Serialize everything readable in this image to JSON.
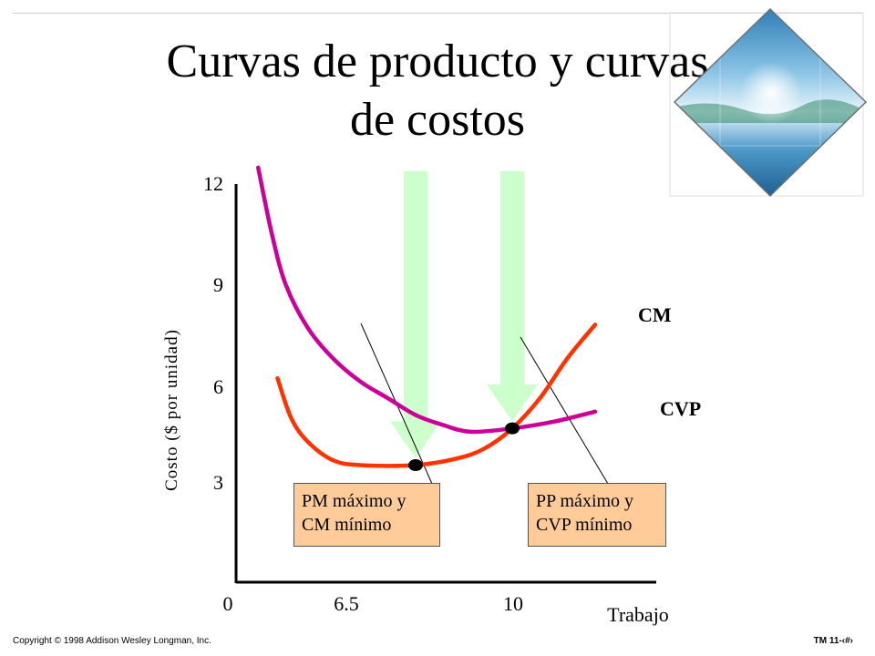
{
  "slide": {
    "title_line1": "Curvas de producto y curvas",
    "title_line2": "de costos",
    "copyright": "Copyright © 1998 Addison Wesley Longman, Inc.",
    "slide_number": "TM 11-‹#›"
  },
  "colors": {
    "cm_curve": "#ff3300",
    "cvp_curve": "#cc0099",
    "arrow": "#ccffcc",
    "callout_fill": "#ffcc99"
  },
  "chart_data": {
    "type": "line",
    "xlabel": "Trabajo",
    "ylabel": "Costo ($ por unidad)",
    "x_ticks": [
      "0",
      "6.5",
      "10"
    ],
    "y_ticks": [
      "12",
      "9",
      "6",
      "3"
    ],
    "xlim": [
      0,
      13.5
    ],
    "ylim": [
      0,
      12
    ],
    "series": [
      {
        "name": "CM",
        "x": [
          1.5,
          2.0,
          2.6,
          3.5,
          4.5,
          6.5,
          8.0,
          9.0,
          10.0,
          11.0,
          12.0,
          13.0
        ],
        "y": [
          6.1,
          4.9,
          4.2,
          3.65,
          3.5,
          3.5,
          3.7,
          4.0,
          4.6,
          5.5,
          6.7,
          7.7
        ]
      },
      {
        "name": "CVP",
        "x": [
          0.8,
          1.3,
          1.8,
          2.6,
          3.5,
          4.5,
          5.5,
          6.5,
          7.5,
          8.5,
          10.0,
          11.5,
          13.0
        ],
        "y": [
          12.4,
          10.4,
          8.9,
          7.6,
          6.7,
          6.0,
          5.5,
          5.0,
          4.7,
          4.5,
          4.6,
          4.8,
          5.1
        ]
      }
    ],
    "points": [
      {
        "x": 6.5,
        "y": 3.5
      },
      {
        "x": 10.0,
        "y": 4.6
      }
    ],
    "arrows_at_x": [
      6.5,
      10.0
    ],
    "annotations": [
      {
        "line1": "PM máximo y",
        "line2": "CM mínimo"
      },
      {
        "line1": "PP máximo y",
        "line2": "CVP mínimo"
      }
    ]
  }
}
